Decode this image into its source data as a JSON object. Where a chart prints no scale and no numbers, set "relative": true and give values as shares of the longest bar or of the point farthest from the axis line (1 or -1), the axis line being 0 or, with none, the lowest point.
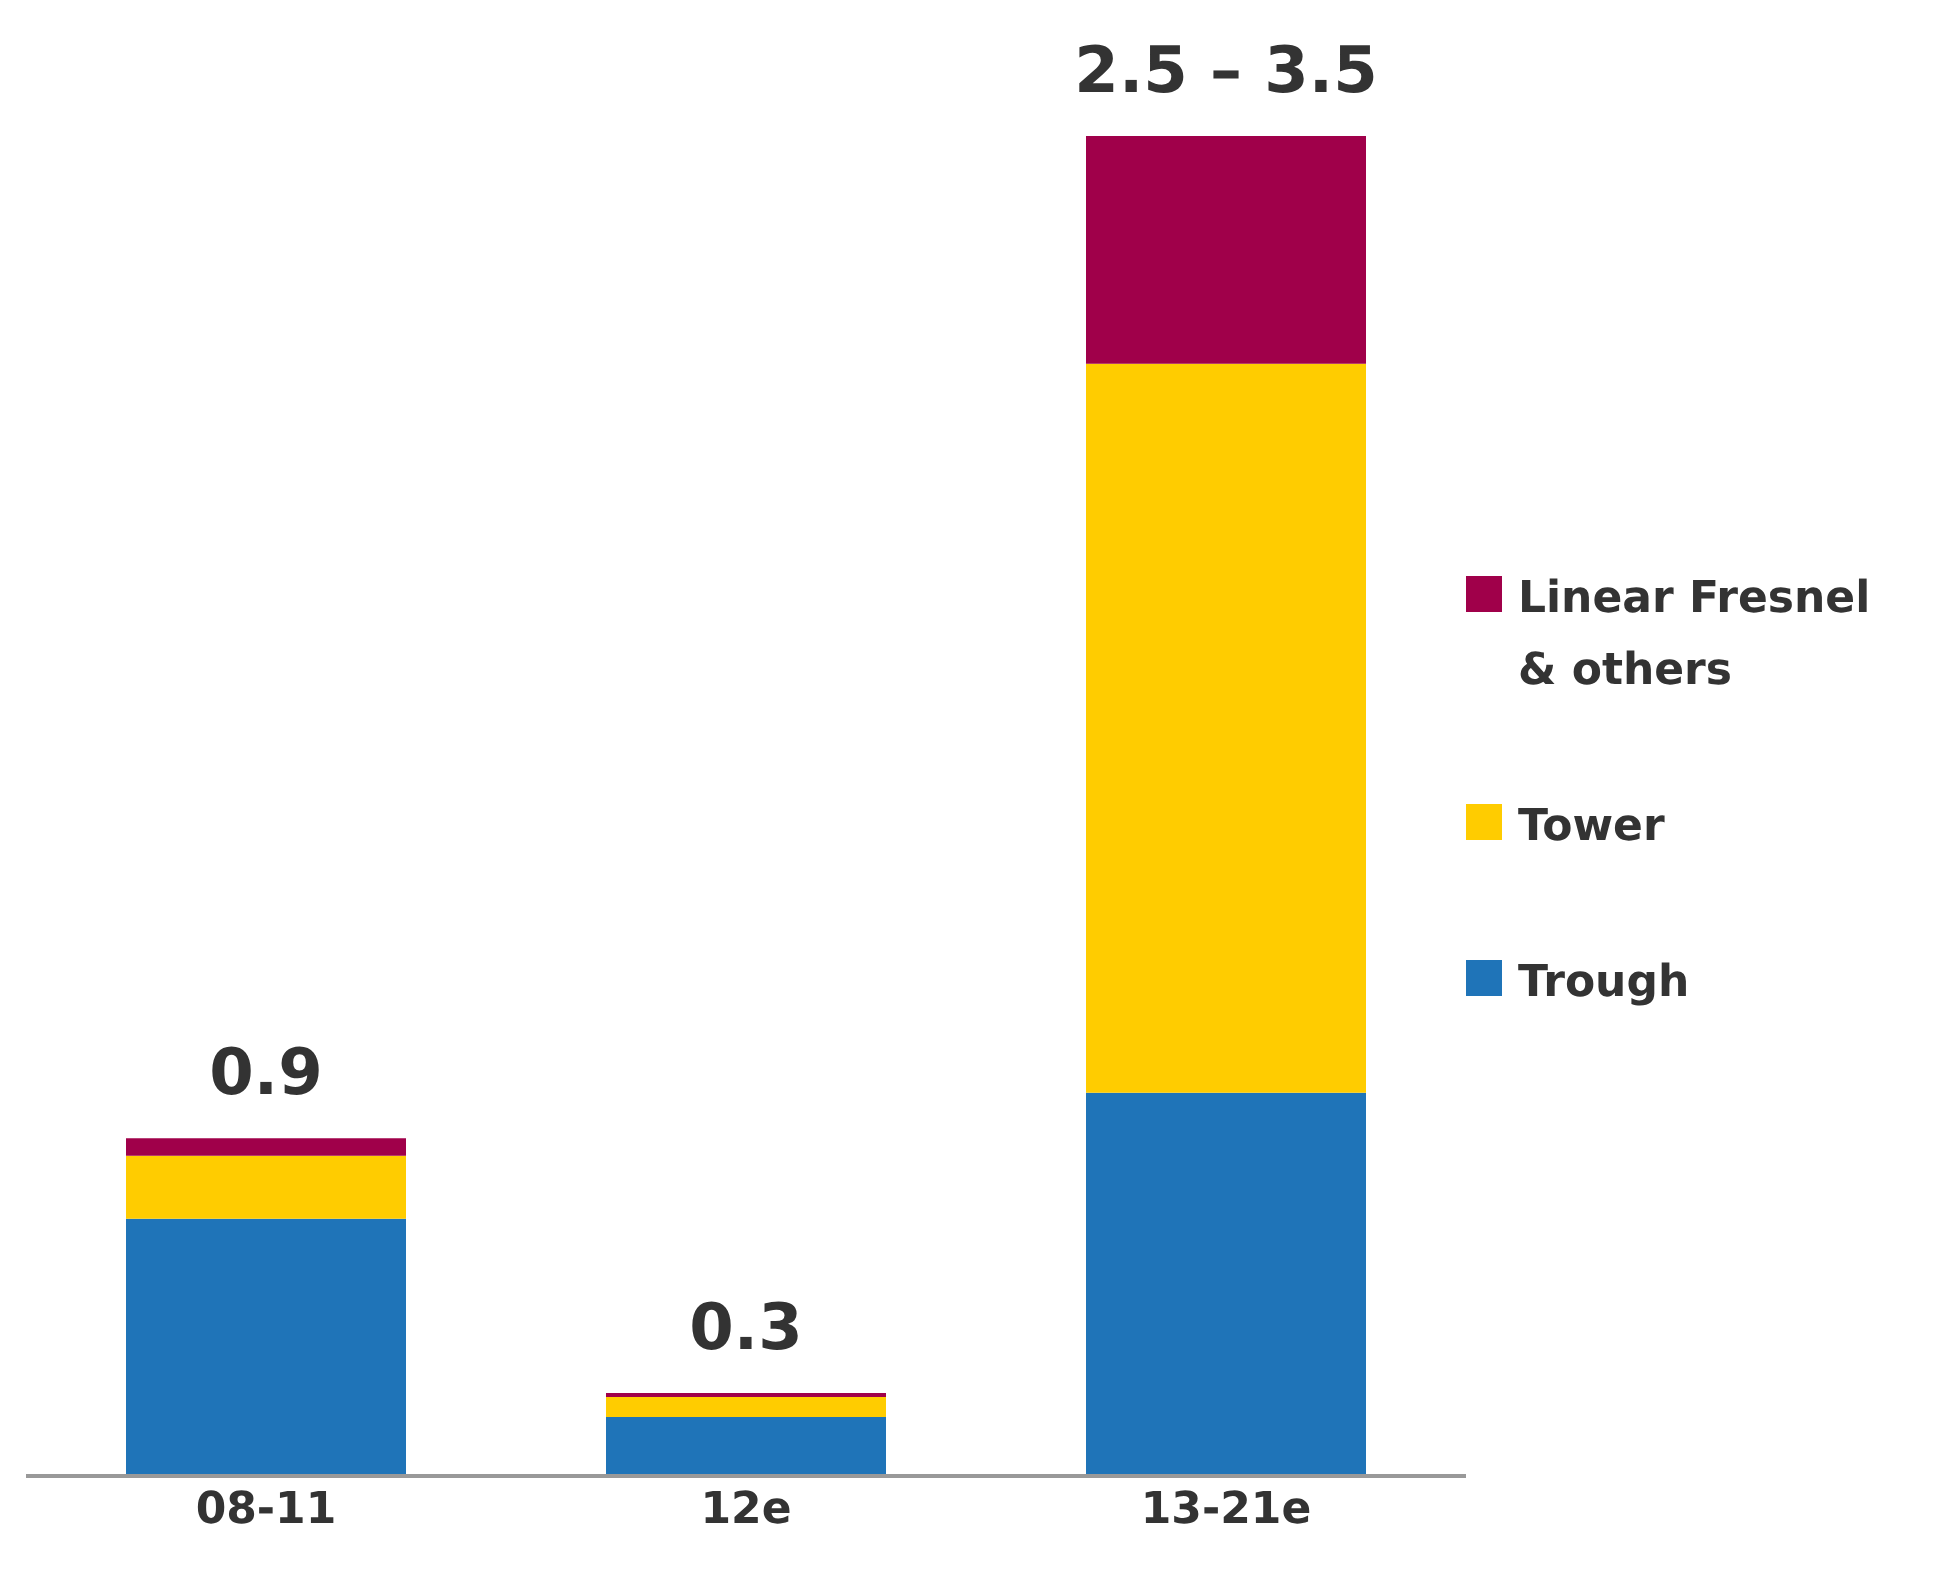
{
  "chart_data": {
    "type": "bar",
    "stacked": true,
    "relative": true,
    "categories": [
      "08-11",
      "12e",
      "13-21e"
    ],
    "series": [
      {
        "name": "Trough",
        "color": "#1f74b8",
        "values": [
          0.192,
          0.044,
          0.286
        ]
      },
      {
        "name": "Tower",
        "color": "#ffcc00",
        "values": [
          0.047,
          0.015,
          0.544
        ]
      },
      {
        "name": "Linear Fresnel & others",
        "color": "#a0004a",
        "values": [
          0.013,
          0.003,
          0.17
        ]
      }
    ],
    "annotations": [
      {
        "text": "0.9",
        "x": "08-11",
        "y": 0.252
      },
      {
        "text": "0.3",
        "x": "12e",
        "y": 0.062
      },
      {
        "text": "2.5 – 3.5",
        "x": "13-21e",
        "y": 1.0
      }
    ],
    "legend": "right",
    "grid": false
  }
}
